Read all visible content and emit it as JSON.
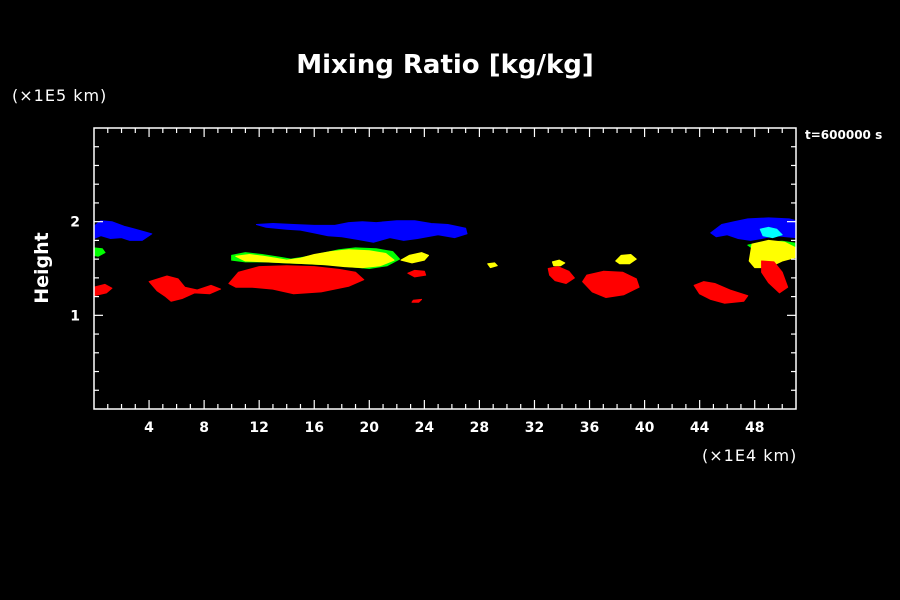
{
  "chart_data": {
    "type": "heatmap",
    "title": "Mixing Ratio [kg/kg]",
    "ylabel": "Height",
    "xlabel": "",
    "x_unit": "(×1E4 km)",
    "y_unit": "(×1E5 km)",
    "time_label": "t=600000 s",
    "xlim": [
      0,
      51
    ],
    "ylim": [
      0,
      3
    ],
    "x_ticks": [
      "4",
      "8",
      "12",
      "16",
      "20",
      "24",
      "28",
      "32",
      "36",
      "40",
      "44",
      "48"
    ],
    "y_ticks": [
      "1",
      "2"
    ],
    "levels": [
      {
        "level": "lowest",
        "color": "#ff0000"
      },
      {
        "level": "low",
        "color": "#00ff00"
      },
      {
        "level": "mid",
        "color": "#ffff00"
      },
      {
        "level": "high",
        "color": "#00ffff"
      },
      {
        "level": "highest",
        "color": "#0000ff"
      }
    ],
    "regions": [
      {
        "level": "highest",
        "color": "#0000ff",
        "points": [
          [
            0.0,
            1.95
          ],
          [
            0.5,
            2.01
          ],
          [
            1.3,
            2.0
          ],
          [
            2.2,
            1.95
          ],
          [
            3.0,
            1.92
          ],
          [
            4.2,
            1.87
          ],
          [
            3.5,
            1.8
          ],
          [
            2.6,
            1.8
          ],
          [
            2.0,
            1.83
          ],
          [
            1.2,
            1.82
          ],
          [
            0.5,
            1.85
          ],
          [
            0.0,
            1.82
          ]
        ]
      },
      {
        "level": "highest",
        "color": "#0000ff",
        "points": [
          [
            11.8,
            1.97
          ],
          [
            13.0,
            1.98
          ],
          [
            14.5,
            1.97
          ],
          [
            16.0,
            1.96
          ],
          [
            17.5,
            1.96
          ],
          [
            18.5,
            1.99
          ],
          [
            19.5,
            2.0
          ],
          [
            20.5,
            1.99
          ],
          [
            22.0,
            2.01
          ],
          [
            23.3,
            2.01
          ],
          [
            24.5,
            1.98
          ],
          [
            25.7,
            1.97
          ],
          [
            27.0,
            1.93
          ],
          [
            27.1,
            1.87
          ],
          [
            26.2,
            1.83
          ],
          [
            25.0,
            1.86
          ],
          [
            23.5,
            1.82
          ],
          [
            22.5,
            1.8
          ],
          [
            21.5,
            1.83
          ],
          [
            20.3,
            1.78
          ],
          [
            19.2,
            1.81
          ],
          [
            18.0,
            1.84
          ],
          [
            17.0,
            1.85
          ],
          [
            16.0,
            1.88
          ],
          [
            15.0,
            1.91
          ],
          [
            14.0,
            1.92
          ],
          [
            12.5,
            1.94
          ]
        ]
      },
      {
        "level": "highest",
        "color": "#0000ff",
        "points": [
          [
            44.8,
            1.88
          ],
          [
            45.6,
            1.97
          ],
          [
            46.5,
            2.0
          ],
          [
            47.5,
            2.03
          ],
          [
            49.0,
            2.04
          ],
          [
            50.5,
            2.03
          ],
          [
            51.0,
            2.01
          ],
          [
            51.0,
            1.83
          ],
          [
            49.5,
            1.85
          ],
          [
            48.5,
            1.82
          ],
          [
            47.7,
            1.8
          ],
          [
            46.8,
            1.82
          ],
          [
            46.0,
            1.86
          ],
          [
            45.2,
            1.84
          ]
        ]
      },
      {
        "level": "high",
        "color": "#00ffff",
        "points": [
          [
            48.4,
            1.92
          ],
          [
            49.0,
            1.94
          ],
          [
            49.6,
            1.92
          ],
          [
            50.0,
            1.86
          ],
          [
            49.3,
            1.83
          ],
          [
            48.6,
            1.85
          ]
        ]
      },
      {
        "level": "low",
        "color": "#00ff00",
        "points": [
          [
            0.0,
            1.72
          ],
          [
            0.6,
            1.71
          ],
          [
            0.8,
            1.67
          ],
          [
            0.3,
            1.63
          ],
          [
            0.0,
            1.64
          ]
        ]
      },
      {
        "level": "low",
        "color": "#00ff00",
        "points": [
          [
            10.0,
            1.64
          ],
          [
            11.0,
            1.67
          ],
          [
            12.2,
            1.65
          ],
          [
            13.5,
            1.62
          ],
          [
            14.3,
            1.6
          ],
          [
            15.2,
            1.62
          ],
          [
            16.5,
            1.66
          ],
          [
            17.8,
            1.7
          ],
          [
            19.0,
            1.72
          ],
          [
            20.5,
            1.71
          ],
          [
            21.7,
            1.68
          ],
          [
            22.2,
            1.6
          ],
          [
            21.3,
            1.53
          ],
          [
            20.0,
            1.5
          ],
          [
            18.5,
            1.52
          ],
          [
            17.0,
            1.54
          ],
          [
            15.5,
            1.55
          ],
          [
            14.0,
            1.56
          ],
          [
            12.5,
            1.57
          ],
          [
            11.0,
            1.57
          ],
          [
            10.0,
            1.59
          ]
        ]
      },
      {
        "level": "low",
        "color": "#00ff00",
        "points": [
          [
            47.5,
            1.75
          ],
          [
            48.5,
            1.78
          ],
          [
            50.0,
            1.79
          ],
          [
            51.0,
            1.77
          ],
          [
            51.0,
            1.68
          ],
          [
            49.5,
            1.7
          ],
          [
            48.0,
            1.7
          ]
        ]
      },
      {
        "level": "mid",
        "color": "#ffff00",
        "points": [
          [
            10.3,
            1.63
          ],
          [
            11.3,
            1.65
          ],
          [
            12.3,
            1.63
          ],
          [
            13.2,
            1.61
          ],
          [
            14.0,
            1.59
          ],
          [
            15.0,
            1.61
          ],
          [
            16.0,
            1.65
          ],
          [
            17.2,
            1.68
          ],
          [
            18.5,
            1.7
          ],
          [
            20.0,
            1.69
          ],
          [
            21.2,
            1.66
          ],
          [
            21.8,
            1.59
          ],
          [
            20.8,
            1.53
          ],
          [
            19.5,
            1.51
          ],
          [
            18.2,
            1.52
          ],
          [
            16.8,
            1.54
          ],
          [
            15.5,
            1.55
          ],
          [
            14.0,
            1.56
          ],
          [
            12.5,
            1.57
          ],
          [
            11.0,
            1.58
          ]
        ]
      },
      {
        "level": "mid",
        "color": "#ffff00",
        "points": [
          [
            22.3,
            1.59
          ],
          [
            22.9,
            1.64
          ],
          [
            23.8,
            1.67
          ],
          [
            24.3,
            1.64
          ],
          [
            24.0,
            1.59
          ],
          [
            23.1,
            1.56
          ]
        ]
      },
      {
        "level": "mid",
        "color": "#ffff00",
        "points": [
          [
            28.6,
            1.55
          ],
          [
            29.1,
            1.56
          ],
          [
            29.3,
            1.53
          ],
          [
            28.8,
            1.51
          ]
        ]
      },
      {
        "level": "mid",
        "color": "#ffff00",
        "points": [
          [
            33.3,
            1.57
          ],
          [
            33.8,
            1.59
          ],
          [
            34.2,
            1.56
          ],
          [
            33.9,
            1.53
          ],
          [
            33.4,
            1.53
          ]
        ]
      },
      {
        "level": "mid",
        "color": "#ffff00",
        "points": [
          [
            37.9,
            1.58
          ],
          [
            38.3,
            1.64
          ],
          [
            39.0,
            1.65
          ],
          [
            39.4,
            1.6
          ],
          [
            38.9,
            1.55
          ],
          [
            38.2,
            1.55
          ]
        ]
      },
      {
        "level": "mid",
        "color": "#ffff00",
        "points": [
          [
            47.8,
            1.76
          ],
          [
            49.0,
            1.8
          ],
          [
            50.2,
            1.78
          ],
          [
            51.0,
            1.72
          ],
          [
            51.0,
            1.62
          ],
          [
            50.0,
            1.58
          ],
          [
            49.0,
            1.51
          ],
          [
            48.0,
            1.51
          ],
          [
            47.6,
            1.58
          ]
        ]
      },
      {
        "level": "lowest",
        "color": "#ff0000",
        "points": [
          [
            0.0,
            1.3
          ],
          [
            0.8,
            1.33
          ],
          [
            1.3,
            1.29
          ],
          [
            0.9,
            1.24
          ],
          [
            0.0,
            1.21
          ]
        ]
      },
      {
        "level": "lowest",
        "color": "#ff0000",
        "points": [
          [
            4.0,
            1.36
          ],
          [
            5.3,
            1.42
          ],
          [
            6.1,
            1.39
          ],
          [
            6.6,
            1.3
          ],
          [
            7.5,
            1.27
          ],
          [
            8.5,
            1.32
          ],
          [
            9.2,
            1.28
          ],
          [
            8.4,
            1.23
          ],
          [
            7.3,
            1.24
          ],
          [
            6.4,
            1.18
          ],
          [
            5.6,
            1.15
          ],
          [
            5.2,
            1.2
          ],
          [
            4.6,
            1.26
          ]
        ]
      },
      {
        "level": "lowest",
        "color": "#ff0000",
        "points": [
          [
            9.8,
            1.34
          ],
          [
            10.5,
            1.46
          ],
          [
            12.0,
            1.52
          ],
          [
            14.0,
            1.53
          ],
          [
            16.0,
            1.52
          ],
          [
            17.8,
            1.49
          ],
          [
            19.0,
            1.46
          ],
          [
            19.6,
            1.38
          ],
          [
            18.5,
            1.31
          ],
          [
            16.5,
            1.25
          ],
          [
            14.5,
            1.23
          ],
          [
            13.0,
            1.28
          ],
          [
            11.5,
            1.3
          ],
          [
            10.3,
            1.3
          ]
        ]
      },
      {
        "level": "lowest",
        "color": "#ff0000",
        "points": [
          [
            22.8,
            1.45
          ],
          [
            23.3,
            1.48
          ],
          [
            24.0,
            1.47
          ],
          [
            24.1,
            1.43
          ],
          [
            23.3,
            1.41
          ]
        ]
      },
      {
        "level": "lowest",
        "color": "#ff0000",
        "points": [
          [
            23.2,
            1.16
          ],
          [
            23.8,
            1.17
          ],
          [
            23.6,
            1.14
          ],
          [
            23.1,
            1.14
          ]
        ]
      },
      {
        "level": "lowest",
        "color": "#ff0000",
        "points": [
          [
            33.0,
            1.5
          ],
          [
            33.7,
            1.52
          ],
          [
            34.5,
            1.47
          ],
          [
            34.9,
            1.4
          ],
          [
            34.3,
            1.34
          ],
          [
            33.5,
            1.37
          ],
          [
            33.1,
            1.43
          ]
        ]
      },
      {
        "level": "lowest",
        "color": "#ff0000",
        "points": [
          [
            35.8,
            1.43
          ],
          [
            37.0,
            1.47
          ],
          [
            38.4,
            1.46
          ],
          [
            39.4,
            1.39
          ],
          [
            39.6,
            1.3
          ],
          [
            38.5,
            1.22
          ],
          [
            37.2,
            1.19
          ],
          [
            36.2,
            1.25
          ],
          [
            35.5,
            1.36
          ]
        ]
      },
      {
        "level": "lowest",
        "color": "#ff0000",
        "points": [
          [
            43.6,
            1.32
          ],
          [
            44.3,
            1.36
          ],
          [
            45.1,
            1.34
          ],
          [
            46.2,
            1.27
          ],
          [
            47.5,
            1.21
          ],
          [
            47.2,
            1.15
          ],
          [
            45.8,
            1.13
          ],
          [
            44.8,
            1.17
          ],
          [
            44.0,
            1.23
          ]
        ]
      },
      {
        "level": "lowest",
        "color": "#ff0000",
        "points": [
          [
            48.5,
            1.58
          ],
          [
            49.4,
            1.57
          ],
          [
            50.0,
            1.46
          ],
          [
            50.4,
            1.3
          ],
          [
            49.8,
            1.24
          ],
          [
            49.0,
            1.35
          ],
          [
            48.5,
            1.46
          ]
        ]
      }
    ]
  }
}
